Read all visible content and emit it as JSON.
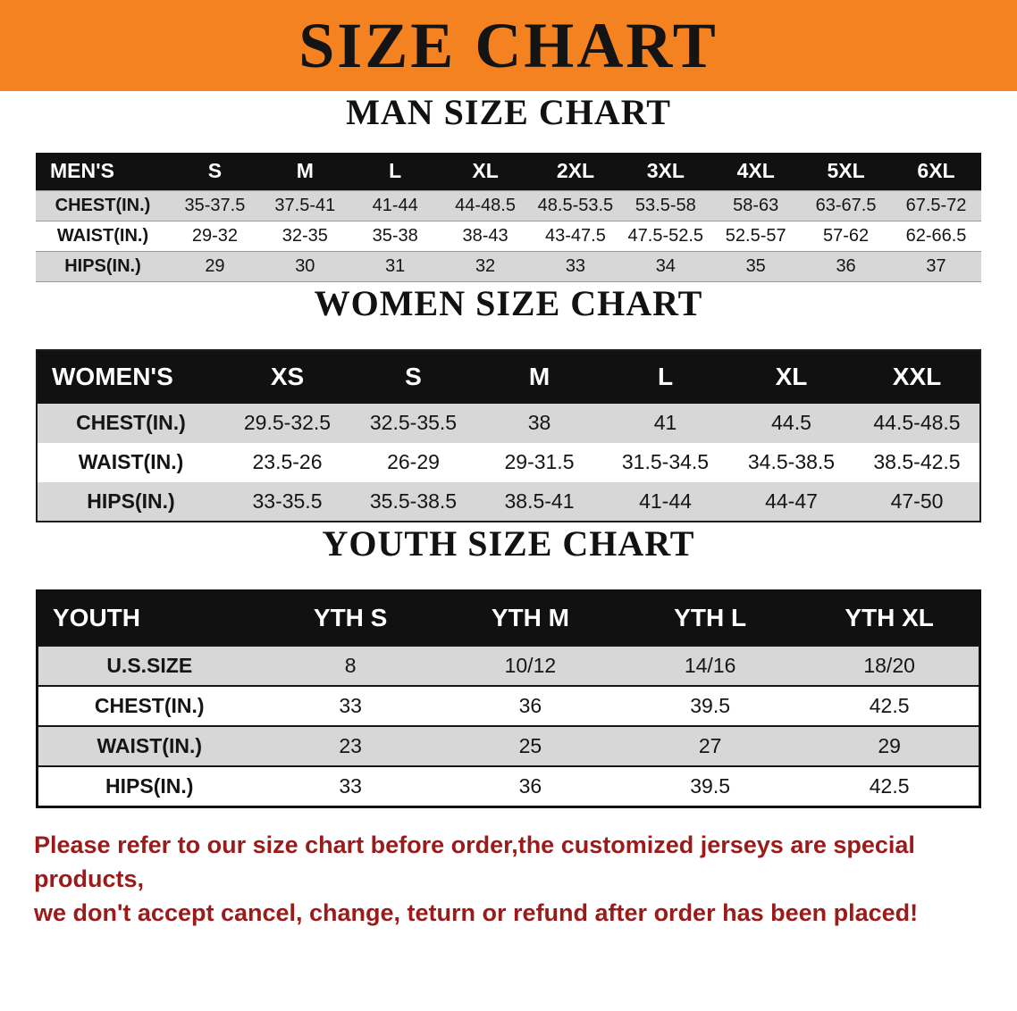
{
  "colors": {
    "banner_bg": "#F58220",
    "title_color": "#141414",
    "table_header_bg": "#111111",
    "row_alt_bg": "#D7D7D7",
    "disclaimer_color": "#9B1B1B"
  },
  "banner": {
    "title": "SIZE CHART"
  },
  "sections": [
    {
      "heading": "MAN SIZE CHART",
      "table": {
        "header": [
          "MEN'S",
          "S",
          "M",
          "L",
          "XL",
          "2XL",
          "3XL",
          "4XL",
          "5XL",
          "6XL"
        ],
        "rows": [
          [
            "CHEST(IN.)",
            "35-37.5",
            "37.5-41",
            "41-44",
            "44-48.5",
            "48.5-53.5",
            "53.5-58",
            "58-63",
            "63-67.5",
            "67.5-72"
          ],
          [
            "WAIST(IN.)",
            "29-32",
            "32-35",
            "35-38",
            "38-43",
            "43-47.5",
            "47.5-52.5",
            "52.5-57",
            "57-62",
            "62-66.5"
          ],
          [
            "HIPS(IN.)",
            "29",
            "30",
            "31",
            "32",
            "33",
            "34",
            "35",
            "36",
            "37"
          ]
        ]
      }
    },
    {
      "heading": "WOMEN SIZE CHART",
      "table": {
        "header": [
          "WOMEN'S",
          "XS",
          "S",
          "M",
          "L",
          "XL",
          "XXL"
        ],
        "rows": [
          [
            "CHEST(IN.)",
            "29.5-32.5",
            "32.5-35.5",
            "38",
            "41",
            "44.5",
            "44.5-48.5"
          ],
          [
            "WAIST(IN.)",
            "23.5-26",
            "26-29",
            "29-31.5",
            "31.5-34.5",
            "34.5-38.5",
            "38.5-42.5"
          ],
          [
            "HIPS(IN.)",
            "33-35.5",
            "35.5-38.5",
            "38.5-41",
            "41-44",
            "44-47",
            "47-50"
          ]
        ]
      }
    },
    {
      "heading": "YOUTH SIZE CHART",
      "table": {
        "header": [
          "YOUTH",
          "YTH S",
          "YTH M",
          "YTH L",
          "YTH XL"
        ],
        "rows": [
          [
            "U.S.SIZE",
            "8",
            "10/12",
            "14/16",
            "18/20"
          ],
          [
            "CHEST(IN.)",
            "33",
            "36",
            "39.5",
            "42.5"
          ],
          [
            "WAIST(IN.)",
            "23",
            "25",
            "27",
            "29"
          ],
          [
            "HIPS(IN.)",
            "33",
            "36",
            "39.5",
            "42.5"
          ]
        ]
      }
    }
  ],
  "disclaimer": {
    "line1": "Please refer to our size chart before order,the customized jerseys are special products,",
    "line2": "we don't accept cancel, change, teturn or refund after order has been placed!"
  }
}
